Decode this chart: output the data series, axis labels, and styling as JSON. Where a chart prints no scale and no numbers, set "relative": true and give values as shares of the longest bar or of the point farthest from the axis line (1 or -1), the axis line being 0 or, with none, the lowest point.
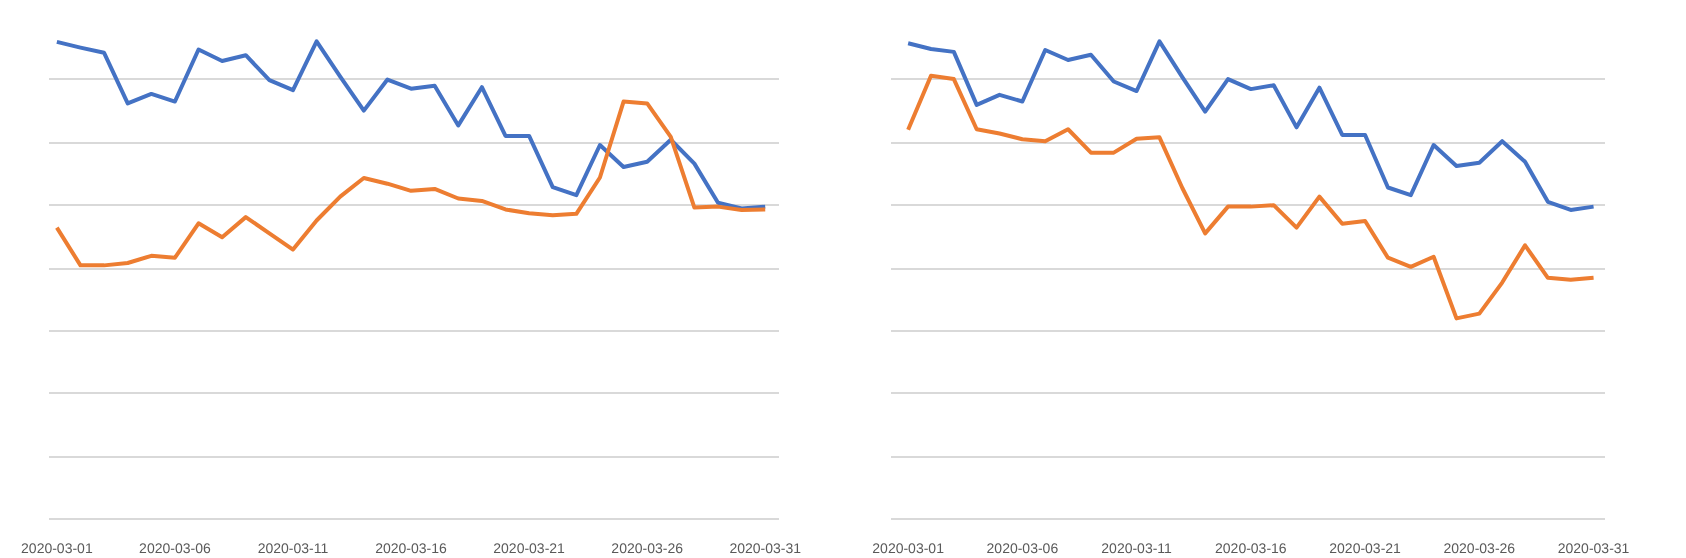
{
  "chart_data": [
    {
      "type": "line",
      "relative": true,
      "grid": "y",
      "x": [
        "2020-03-01",
        "2020-03-02",
        "2020-03-03",
        "2020-03-04",
        "2020-03-05",
        "2020-03-06",
        "2020-03-07",
        "2020-03-08",
        "2020-03-09",
        "2020-03-10",
        "2020-03-11",
        "2020-03-12",
        "2020-03-13",
        "2020-03-14",
        "2020-03-15",
        "2020-03-16",
        "2020-03-17",
        "2020-03-18",
        "2020-03-19",
        "2020-03-20",
        "2020-03-21",
        "2020-03-22",
        "2020-03-23",
        "2020-03-24",
        "2020-03-25",
        "2020-03-26",
        "2020-03-27",
        "2020-03-28",
        "2020-03-29",
        "2020-03-30",
        "2020-03-31"
      ],
      "xlim": [
        "2020-02-29T16:00",
        "2020-03-31T14:00"
      ],
      "xticks": [
        "2020-03-01",
        "2020-03-06",
        "2020-03-11",
        "2020-03-16",
        "2020-03-21",
        "2020-03-26",
        "2020-03-31"
      ],
      "series": [
        {
          "color": "#4472c4",
          "values": [
            0.999,
            0.987,
            0.976,
            0.87,
            0.89,
            0.874,
            0.983,
            0.959,
            0.971,
            0.919,
            0.898,
            1,
            0.926,
            0.855,
            0.92,
            0.901,
            0.907,
            0.824,
            0.904,
            0.802,
            0.802,
            0.695,
            0.678,
            0.783,
            0.737,
            0.748,
            0.794,
            0.744,
            0.662,
            0.65,
            0.654
          ]
        },
        {
          "color": "#ed7d31",
          "values": [
            0.61,
            0.531,
            0.531,
            0.536,
            0.551,
            0.547,
            0.619,
            0.59,
            0.632,
            0.598,
            0.564,
            0.625,
            0.675,
            0.714,
            0.702,
            0.687,
            0.691,
            0.671,
            0.666,
            0.648,
            0.64,
            0.636,
            0.639,
            0.715,
            0.874,
            0.87,
            0.8,
            0.652,
            0.654,
            0.647,
            0.648
          ]
        }
      ]
    },
    {
      "type": "line",
      "relative": true,
      "grid": "y",
      "x": [
        "2020-03-01",
        "2020-03-02",
        "2020-03-03",
        "2020-03-04",
        "2020-03-05",
        "2020-03-06",
        "2020-03-07",
        "2020-03-08",
        "2020-03-09",
        "2020-03-10",
        "2020-03-11",
        "2020-03-12",
        "2020-03-13",
        "2020-03-14",
        "2020-03-15",
        "2020-03-16",
        "2020-03-17",
        "2020-03-18",
        "2020-03-19",
        "2020-03-20",
        "2020-03-21",
        "2020-03-22",
        "2020-03-23",
        "2020-03-24",
        "2020-03-25",
        "2020-03-26",
        "2020-03-27",
        "2020-03-28",
        "2020-03-29",
        "2020-03-30",
        "2020-03-31"
      ],
      "xlim": [
        "2020-02-29T06:00",
        "2020-03-31T12:00"
      ],
      "xticks": [
        "2020-03-01",
        "2020-03-06",
        "2020-03-11",
        "2020-03-16",
        "2020-03-21",
        "2020-03-26",
        "2020-03-31"
      ],
      "series": [
        {
          "color": "#4472c4",
          "values": [
            0.996,
            0.984,
            0.978,
            0.867,
            0.888,
            0.874,
            0.982,
            0.961,
            0.972,
            0.916,
            0.896,
            1,
            0.925,
            0.853,
            0.921,
            0.9,
            0.908,
            0.82,
            0.903,
            0.804,
            0.804,
            0.694,
            0.678,
            0.783,
            0.739,
            0.746,
            0.791,
            0.748,
            0.664,
            0.647,
            0.654
          ]
        },
        {
          "color": "#ed7d31",
          "values": [
            0.815,
            0.928,
            0.921,
            0.816,
            0.807,
            0.795,
            0.791,
            0.816,
            0.767,
            0.767,
            0.796,
            0.799,
            0.693,
            0.598,
            0.654,
            0.654,
            0.657,
            0.61,
            0.675,
            0.618,
            0.624,
            0.547,
            0.528,
            0.549,
            0.42,
            0.43,
            0.495,
            0.573,
            0.505,
            0.501,
            0.505
          ]
        }
      ]
    }
  ]
}
